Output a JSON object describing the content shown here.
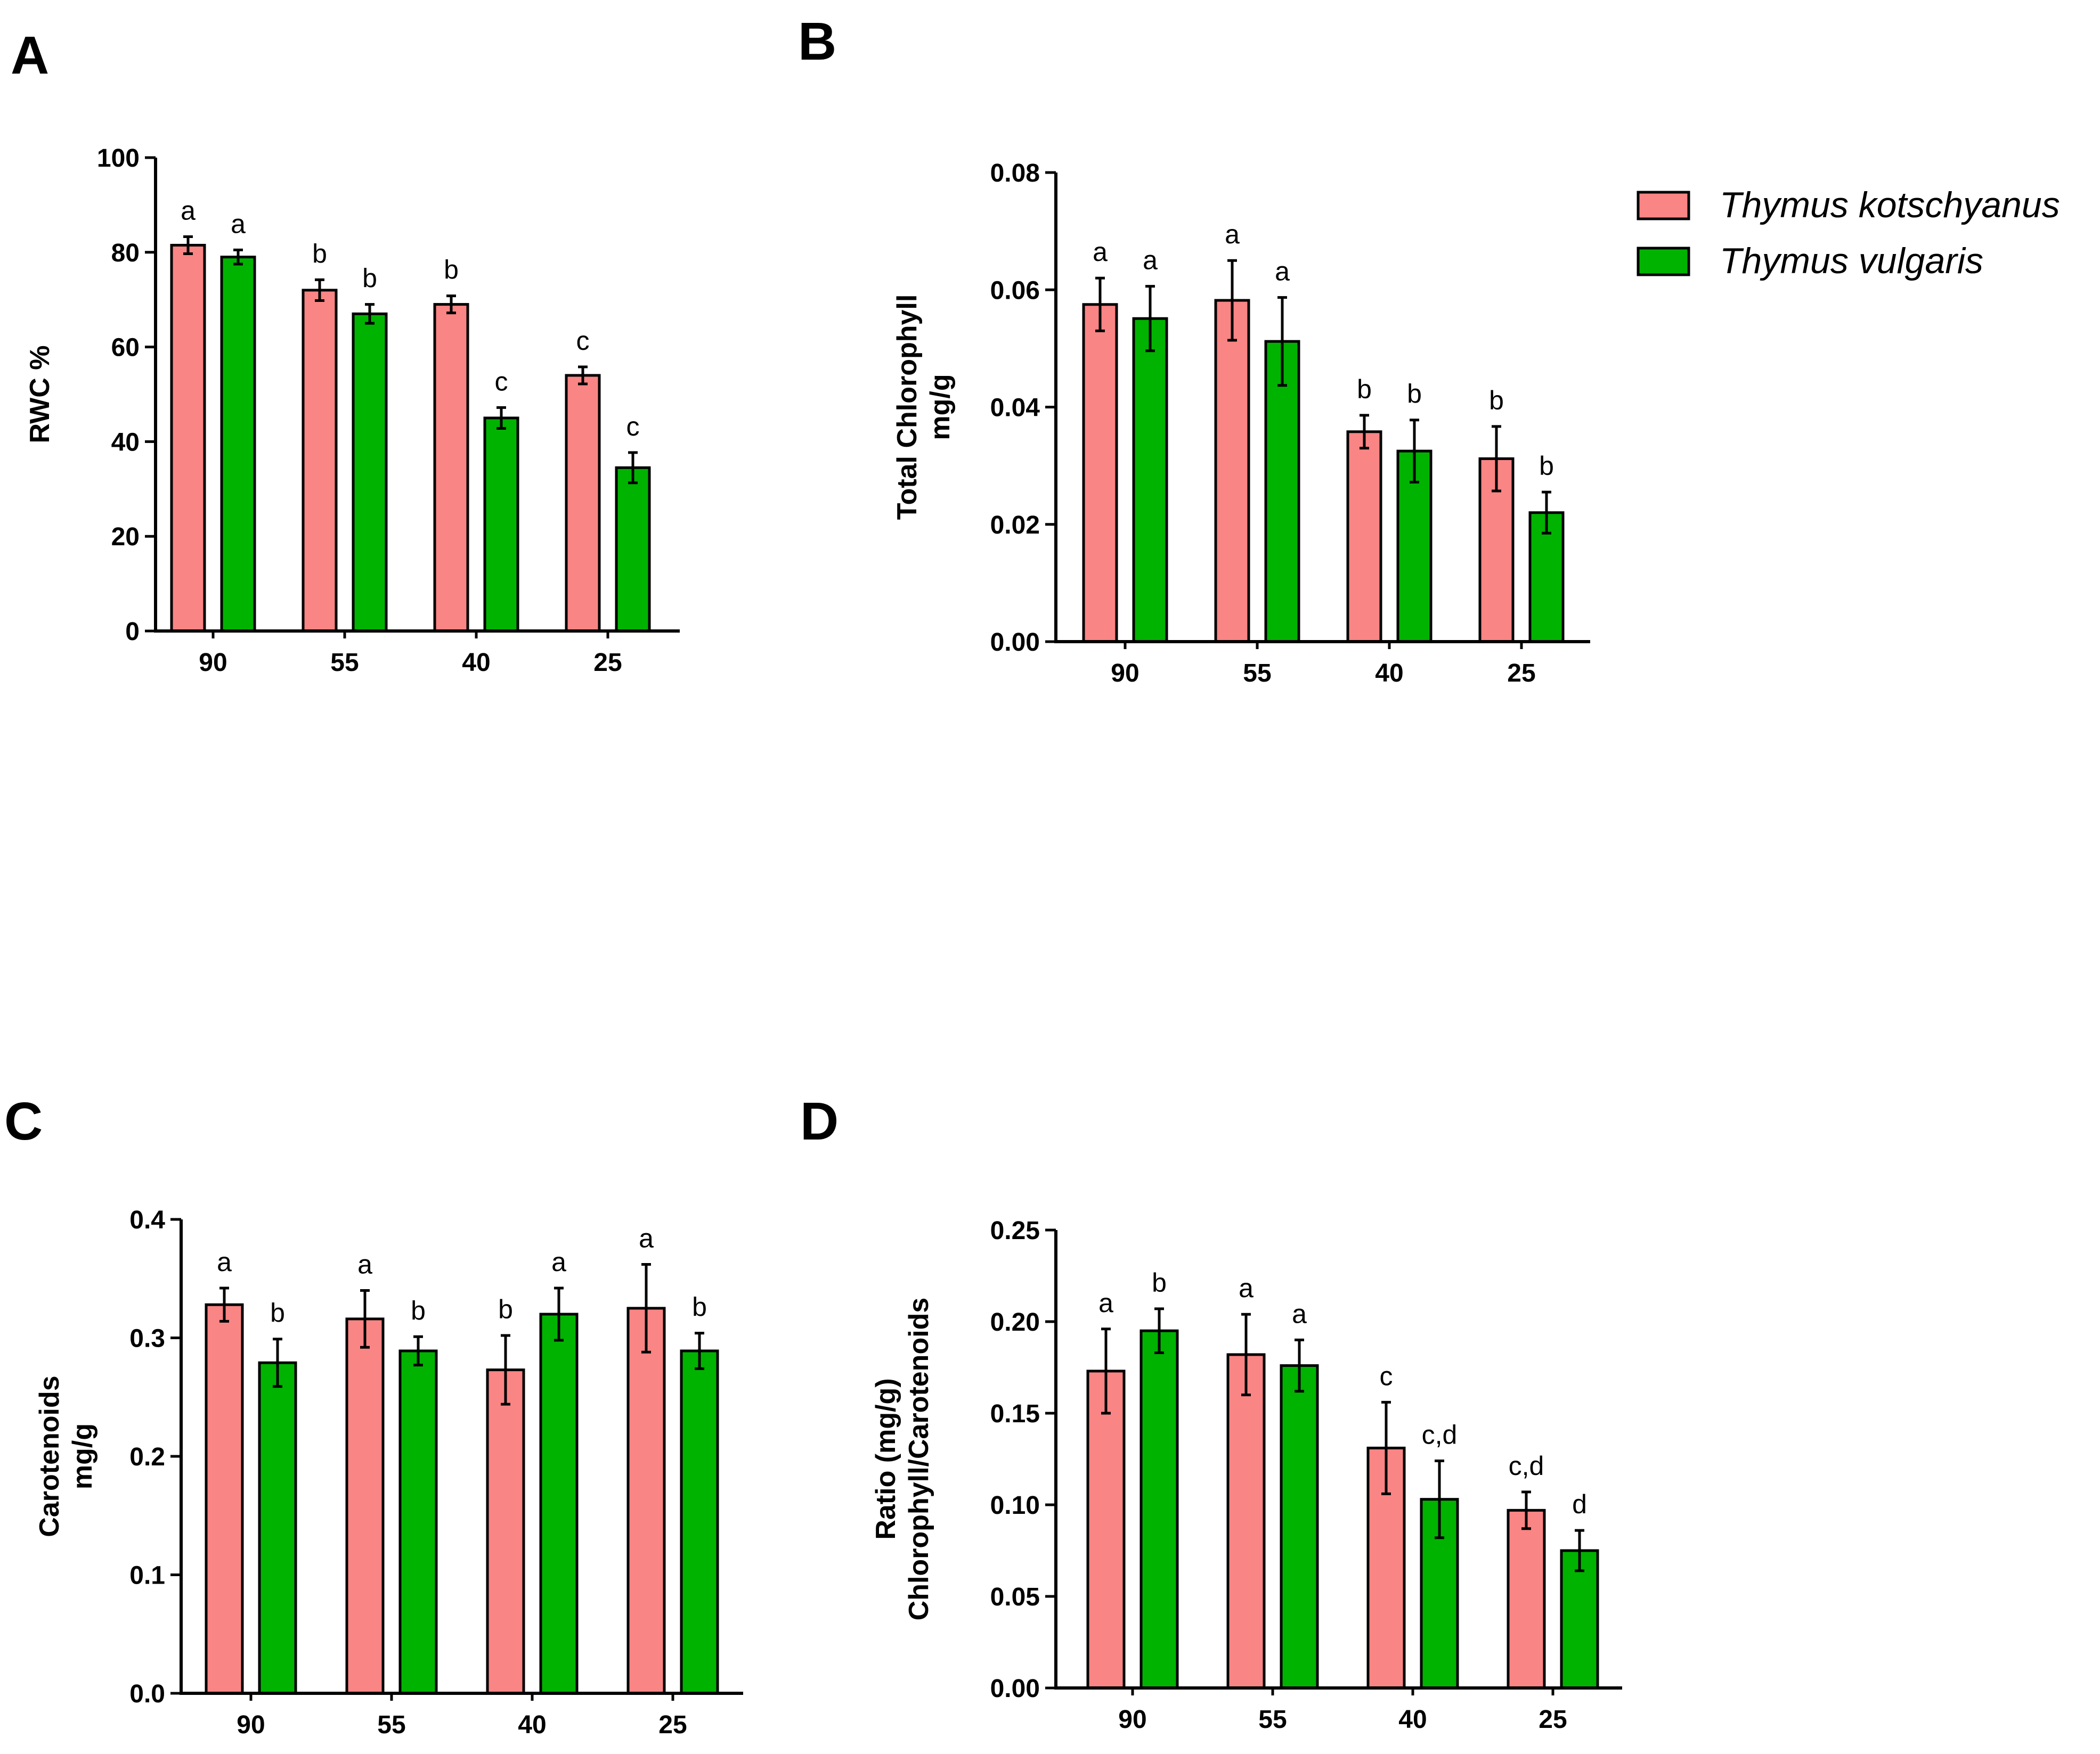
{
  "panels": [
    {
      "letter": "A",
      "ylabel": [
        "RWC %"
      ],
      "ylim": [
        0,
        100
      ],
      "yticks": [
        "0",
        "20",
        "40",
        "60",
        "80",
        "100"
      ]
    },
    {
      "letter": "B",
      "ylabel": [
        "Total Chlorophyll",
        "mg/g"
      ],
      "ylim": [
        0,
        0.08
      ],
      "yticks": [
        "0.00",
        "0.02",
        "0.04",
        "0.06",
        "0.08"
      ]
    },
    {
      "letter": "C",
      "ylabel": [
        "Carotenoids",
        "mg/g"
      ],
      "ylim": [
        0,
        0.4
      ],
      "yticks": [
        "0.0",
        "0.1",
        "0.2",
        "0.3",
        "0.4"
      ]
    },
    {
      "letter": "D",
      "ylabel": [
        "Ratio (mg/g)",
        "Chlorophyll/Carotenoids"
      ],
      "ylim": [
        0,
        0.25
      ],
      "yticks": [
        "0.00",
        "0.05",
        "0.10",
        "0.15",
        "0.20",
        "0.25"
      ]
    }
  ],
  "legend": [
    {
      "label": "Thymus kotschyanus",
      "color": "#F98584"
    },
    {
      "label": "Thymus vulgaris",
      "color": "#00B300"
    }
  ],
  "chart_data": [
    {
      "type": "bar",
      "panel": "A",
      "categories": [
        "90",
        "55",
        "40",
        "25"
      ],
      "ylabel": "RWC %",
      "ylim": [
        0,
        100
      ],
      "series": [
        {
          "name": "Thymus kotschyanus",
          "values": [
            81.5,
            72,
            69,
            54
          ],
          "errors": [
            1.8,
            2.2,
            1.8,
            1.8
          ],
          "letters": [
            "a",
            "b",
            "b",
            "c"
          ]
        },
        {
          "name": "Thymus vulgaris",
          "values": [
            79,
            67,
            45,
            34.5
          ],
          "errors": [
            1.5,
            2.0,
            2.2,
            3.2
          ],
          "letters": [
            "a",
            "b",
            "c",
            "c"
          ]
        }
      ]
    },
    {
      "type": "bar",
      "panel": "B",
      "categories": [
        "90",
        "55",
        "40",
        "25"
      ],
      "ylabel": "Total Chlorophyll mg/g",
      "ylim": [
        0,
        0.08
      ],
      "series": [
        {
          "name": "Thymus kotschyanus",
          "values": [
            0.0575,
            0.0582,
            0.0358,
            0.0312
          ],
          "errors": [
            0.0045,
            0.0068,
            0.0028,
            0.0055
          ],
          "letters": [
            "a",
            "a",
            "b",
            "b"
          ]
        },
        {
          "name": "Thymus vulgaris",
          "values": [
            0.0551,
            0.0512,
            0.0325,
            0.022
          ],
          "errors": [
            0.0055,
            0.0075,
            0.0053,
            0.0035
          ],
          "letters": [
            "a",
            "a",
            "b",
            "b"
          ]
        }
      ]
    },
    {
      "type": "bar",
      "panel": "C",
      "categories": [
        "90",
        "55",
        "40",
        "25"
      ],
      "ylabel": "Carotenoids mg/g",
      "ylim": [
        0,
        0.4
      ],
      "series": [
        {
          "name": "Thymus kotschyanus",
          "values": [
            0.328,
            0.316,
            0.273,
            0.325
          ],
          "errors": [
            0.014,
            0.024,
            0.029,
            0.037
          ],
          "letters": [
            "a",
            "a",
            "b",
            "a"
          ]
        },
        {
          "name": "Thymus vulgaris",
          "values": [
            0.279,
            0.289,
            0.32,
            0.289
          ],
          "errors": [
            0.02,
            0.012,
            0.022,
            0.015
          ],
          "letters": [
            "b",
            "b",
            "a",
            "b"
          ]
        }
      ]
    },
    {
      "type": "bar",
      "panel": "D",
      "categories": [
        "90",
        "55",
        "40",
        "25"
      ],
      "ylabel": "Ratio (mg/g) Chlorophyll/Carotenoids",
      "ylim": [
        0,
        0.25
      ],
      "series": [
        {
          "name": "Thymus kotschyanus",
          "values": [
            0.173,
            0.182,
            0.131,
            0.097
          ],
          "errors": [
            0.023,
            0.022,
            0.025,
            0.01
          ],
          "letters": [
            "a",
            "a",
            "c",
            "c,d"
          ]
        },
        {
          "name": "Thymus vulgaris",
          "values": [
            0.195,
            0.176,
            0.103,
            0.075
          ],
          "errors": [
            0.012,
            0.014,
            0.021,
            0.011
          ],
          "letters": [
            "b",
            "a",
            "c,d",
            "d"
          ]
        }
      ]
    }
  ]
}
